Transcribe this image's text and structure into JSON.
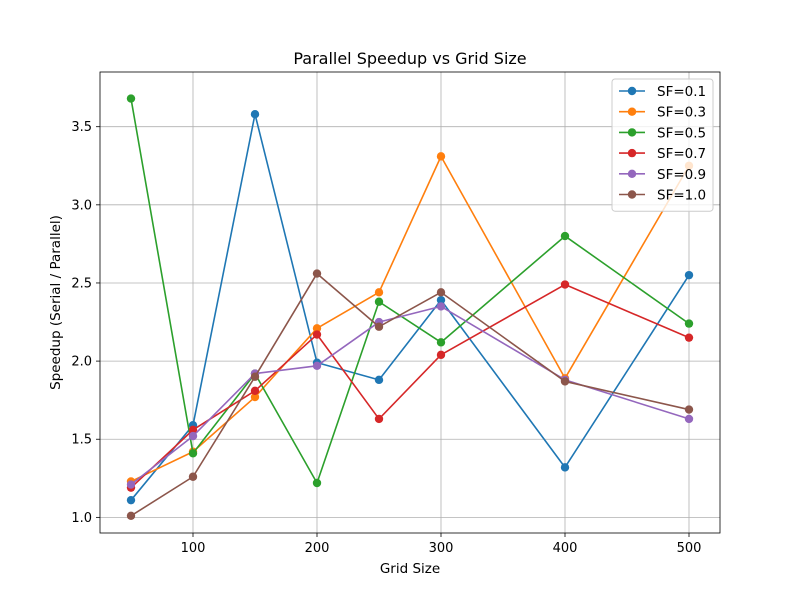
{
  "chart_data": {
    "type": "line",
    "title": "Parallel Speedup vs Grid Size",
    "xlabel": "Grid Size",
    "ylabel": "Speedup (Serial / Parallel)",
    "x": [
      50,
      100,
      150,
      200,
      250,
      300,
      400,
      500
    ],
    "xlim": [
      25,
      525
    ],
    "ylim": [
      0.9,
      3.85
    ],
    "xticks": [
      100,
      200,
      300,
      400,
      500
    ],
    "yticks": [
      1.0,
      1.5,
      2.0,
      2.5,
      3.0,
      3.5
    ],
    "ytick_labels": [
      "1.0",
      "1.5",
      "2.0",
      "2.5",
      "3.0",
      "3.5"
    ],
    "grid": true,
    "legend_position": "top-right",
    "series": [
      {
        "name": "SF=0.1",
        "color": "#1f77b4",
        "values": [
          1.11,
          1.59,
          3.58,
          1.99,
          1.88,
          2.39,
          1.32,
          2.55
        ]
      },
      {
        "name": "SF=0.3",
        "color": "#ff7f0e",
        "values": [
          1.23,
          1.42,
          1.77,
          2.21,
          2.44,
          3.31,
          1.89,
          3.25
        ]
      },
      {
        "name": "SF=0.5",
        "color": "#2ca02c",
        "values": [
          3.68,
          1.41,
          1.92,
          1.22,
          2.38,
          2.12,
          2.8,
          2.24
        ]
      },
      {
        "name": "SF=0.7",
        "color": "#d62728",
        "values": [
          1.19,
          1.56,
          1.81,
          2.17,
          1.63,
          2.04,
          2.49,
          2.15
        ]
      },
      {
        "name": "SF=0.9",
        "color": "#9467bd",
        "values": [
          1.21,
          1.52,
          1.92,
          1.97,
          2.25,
          2.35,
          1.88,
          1.63
        ]
      },
      {
        "name": "SF=1.0",
        "color": "#8c564b",
        "values": [
          1.01,
          1.26,
          1.9,
          2.56,
          2.22,
          2.44,
          1.87,
          1.69
        ]
      }
    ]
  }
}
